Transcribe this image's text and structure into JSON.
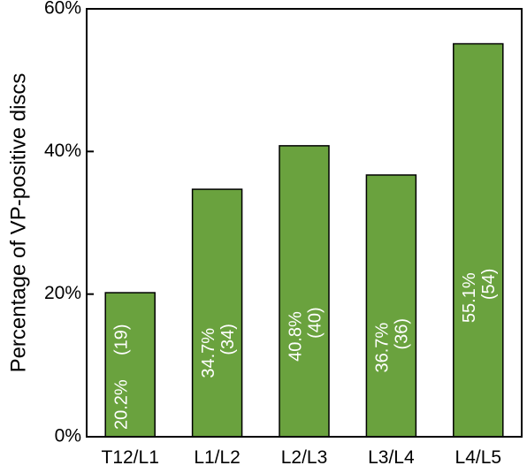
{
  "chart_data": {
    "type": "bar",
    "categories": [
      "T12/L1",
      "L1/L2",
      "L2/L3",
      "L3/L4",
      "L4/L5"
    ],
    "values": [
      20.2,
      34.7,
      40.8,
      36.7,
      55.1
    ],
    "counts": [
      19,
      34,
      40,
      36,
      54
    ],
    "bar_labels": [
      "20.2%",
      "34.7%",
      "40.8%",
      "36.7%",
      "55.1%"
    ],
    "count_labels": [
      "(19)",
      "(34)",
      "(40)",
      "(36)",
      "(54)"
    ],
    "title": "",
    "xlabel": "",
    "ylabel": "Percentage of VP-positive discs",
    "ylim": [
      0,
      60
    ],
    "yticks": [
      0,
      20,
      40,
      60
    ],
    "ytick_labels": [
      "0%",
      "20%",
      "40%",
      "60%"
    ],
    "grid": false,
    "bar_color": "#6aa23e",
    "bar_edge_color": "#000000"
  }
}
